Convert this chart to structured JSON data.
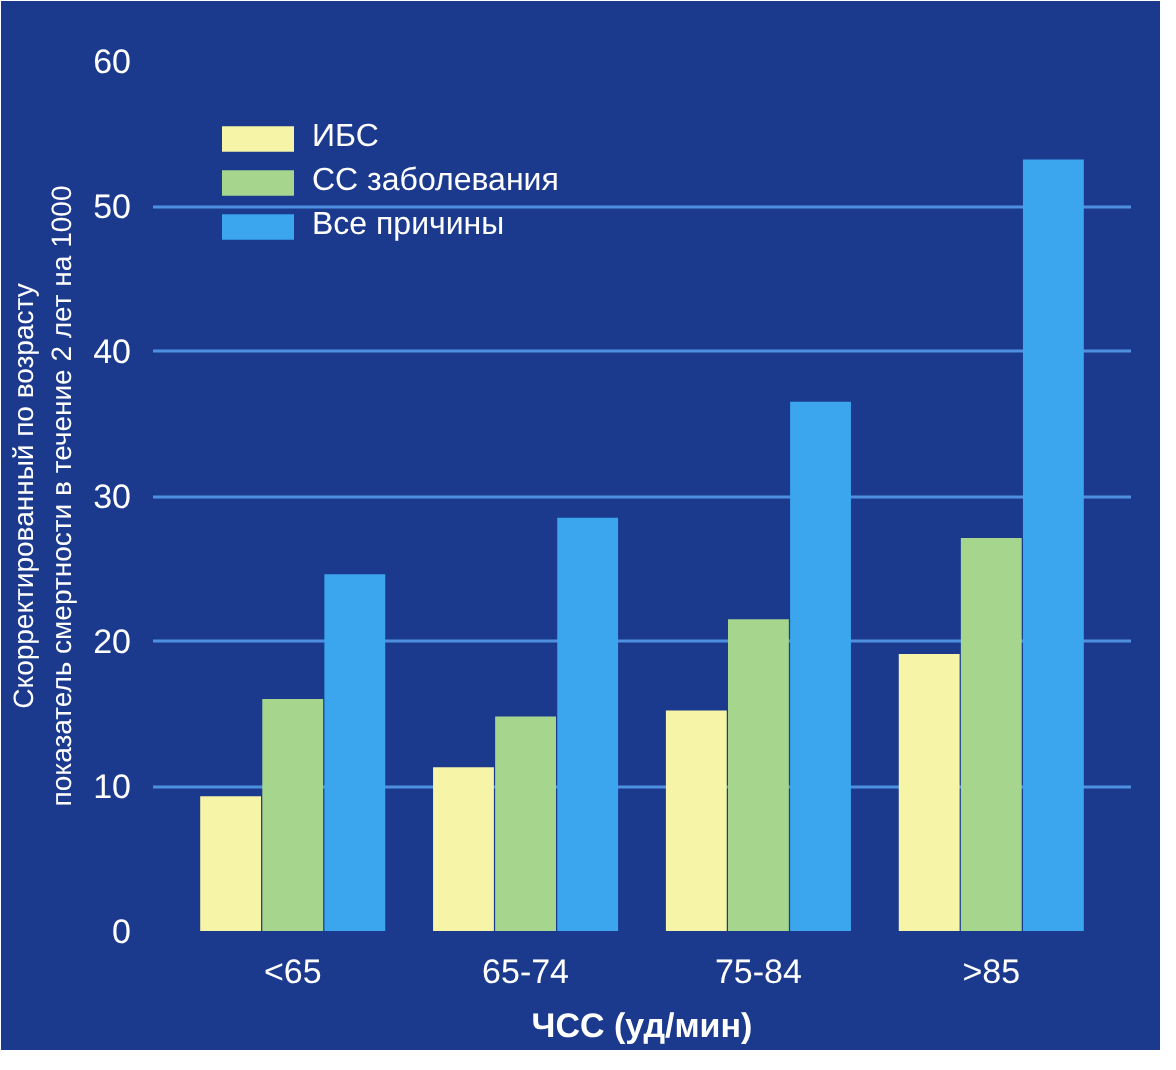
{
  "chart_data": {
    "type": "bar",
    "xlabel": "ЧСС (уд/мин)",
    "ylabel": "Скорректированный по возрасту\nпоказатель смертности в течение 2 лет на 1000",
    "categories": [
      "<65",
      "65-74",
      "75-84",
      ">85"
    ],
    "series": [
      {
        "name": "ИБС",
        "color": "#f6f4a6",
        "values": [
          9.3,
          11.3,
          15.2,
          19.1
        ]
      },
      {
        "name": "СС заболевания",
        "color": "#a6d68e",
        "values": [
          16.0,
          14.8,
          21.5,
          27.1
        ]
      },
      {
        "name": "Все причины",
        "color": "#3ba6ee",
        "values": [
          24.6,
          28.5,
          36.5,
          53.2
        ]
      }
    ],
    "ylim": [
      0,
      60
    ],
    "yticks": [
      0,
      10,
      20,
      30,
      40,
      50,
      60
    ],
    "grid": "y",
    "legend": "top left"
  }
}
